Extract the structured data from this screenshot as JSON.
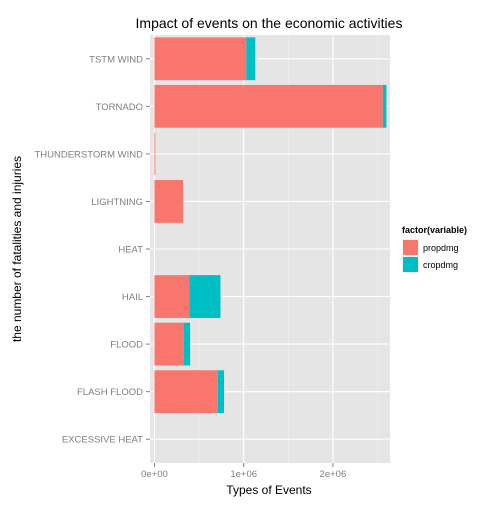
{
  "chart_data": {
    "type": "bar",
    "orientation": "horizontal",
    "stacked": true,
    "title": "Impact of events on the economic activities",
    "xlabel": "Types of Events",
    "ylabel": "the number of fatalities and injuries",
    "categories": [
      "TSTM WIND",
      "TORNADO",
      "THUNDERSTORM WIND",
      "LIGHTNING",
      "HEAT",
      "HAIL",
      "FLOOD",
      "FLASH FLOOD",
      "EXCESSIVE HEAT"
    ],
    "series": [
      {
        "name": "propdmg",
        "color": "#F8766D",
        "values": [
          1030000,
          2560000,
          10000,
          320000,
          0,
          390000,
          330000,
          710000,
          0
        ]
      },
      {
        "name": "cropdmg",
        "color": "#00BFC4",
        "values": [
          100000,
          40000,
          0,
          0,
          0,
          350000,
          70000,
          70000,
          0
        ]
      }
    ],
    "xticks": [
      0,
      1000000,
      2000000
    ],
    "xtick_labels": [
      "0e+00",
      "1e+06",
      "2e+06"
    ],
    "xlim": [
      -50000,
      2640000
    ],
    "grid": true,
    "background": "#E5E5E5",
    "legend": {
      "title": "factor(variable)",
      "position": "right",
      "entries": [
        "propdmg",
        "cropdmg"
      ]
    }
  }
}
